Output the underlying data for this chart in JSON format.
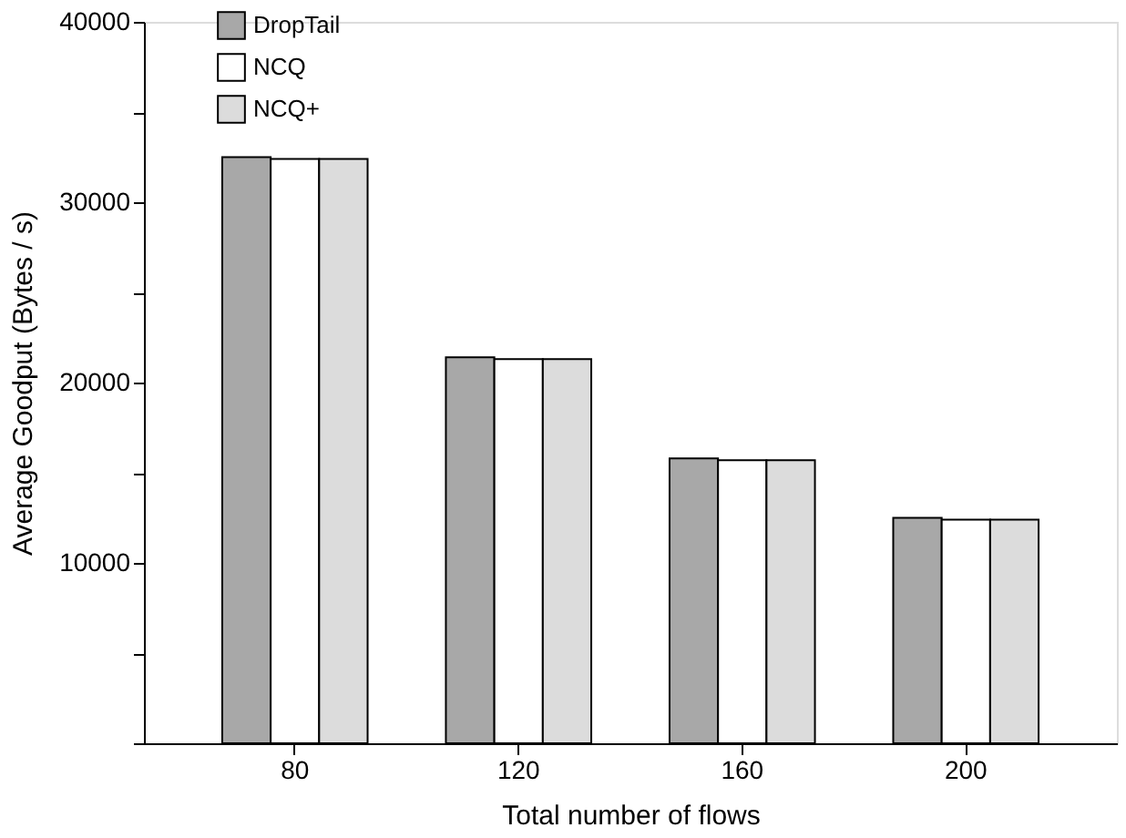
{
  "chart_data": {
    "type": "bar",
    "xlabel": "Total number of  flows",
    "ylabel": "Average Goodput  (Bytes / s)",
    "categories": [
      "80",
      "120",
      "160",
      "200"
    ],
    "series": [
      {
        "name": "DropTail",
        "color": "#a8a8a8",
        "values": [
          32500,
          21400,
          15800,
          12500
        ]
      },
      {
        "name": "NCQ",
        "color": "#ffffff",
        "values": [
          32400,
          21300,
          15700,
          12400
        ]
      },
      {
        "name": "NCQ+",
        "color": "#dcdcdc",
        "values": [
          32400,
          21300,
          15700,
          12400
        ]
      }
    ],
    "ylim": [
      0,
      40000
    ],
    "yticks": [
      {
        "value": 0,
        "label": null
      },
      {
        "value": 5000,
        "label": null
      },
      10000,
      {
        "value": 15000,
        "label": null
      },
      20000,
      {
        "value": 25000,
        "label": null
      },
      30000,
      {
        "value": 35000,
        "label": null
      },
      40000
    ],
    "grid": false,
    "legend": "top left"
  }
}
